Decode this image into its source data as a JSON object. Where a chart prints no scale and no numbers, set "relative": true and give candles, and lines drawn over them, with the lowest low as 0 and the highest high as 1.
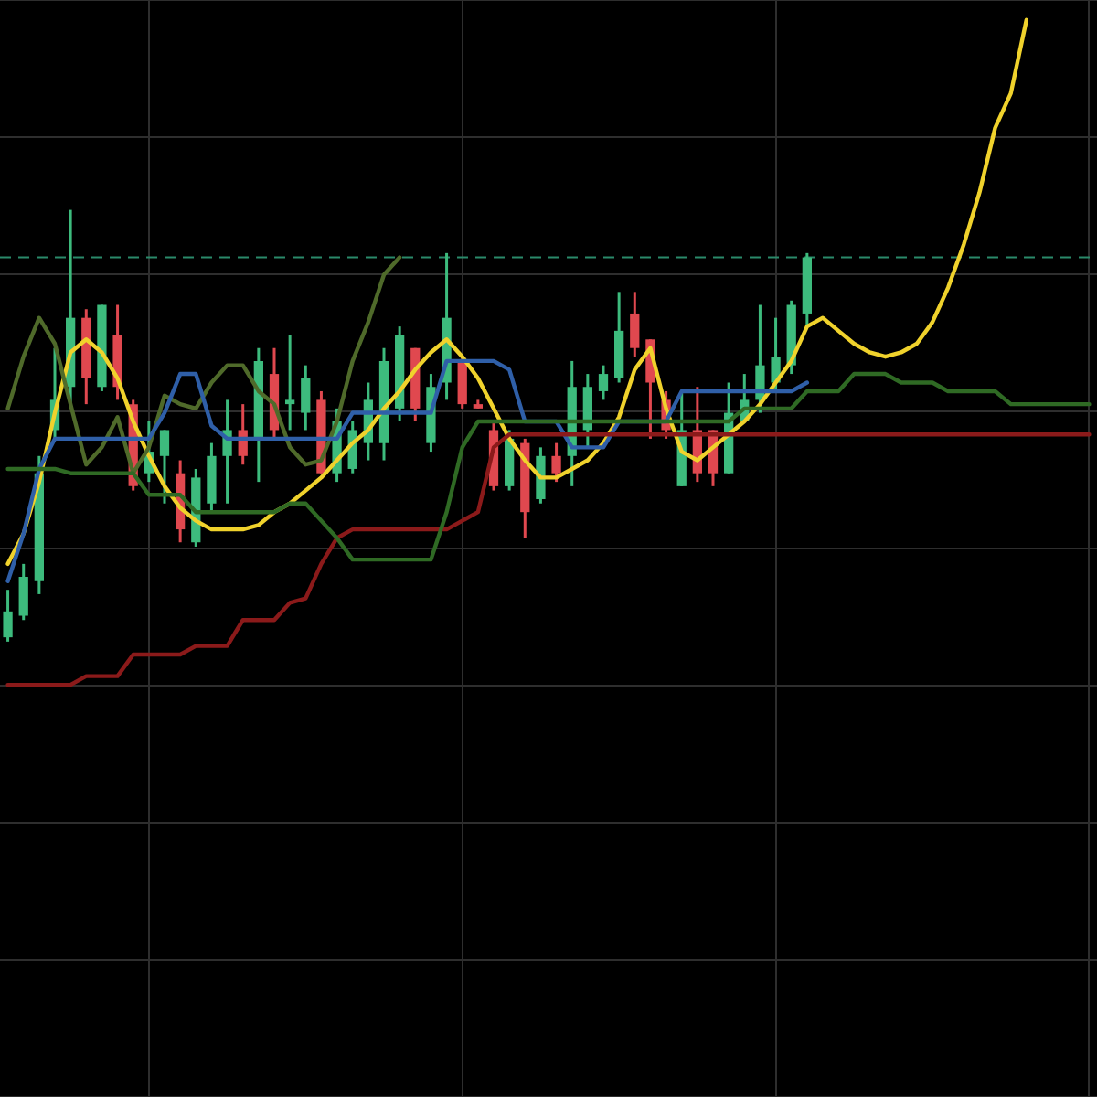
{
  "chart_data": {
    "type": "candlestick",
    "relative": true,
    "grid": true,
    "legend": false,
    "marker": "none",
    "line_style": "solid",
    "categories": [
      null,
      null,
      null,
      null,
      null,
      null,
      null,
      null,
      null,
      null,
      null,
      null,
      null,
      null,
      null,
      null,
      null,
      null,
      null,
      null,
      null,
      null,
      null,
      null,
      null,
      null,
      null,
      null,
      null,
      null,
      null,
      null,
      null,
      null,
      null,
      null,
      null,
      null,
      null,
      null,
      null,
      null,
      null,
      null,
      null,
      null,
      null,
      null,
      null,
      null,
      null,
      null,
      null,
      null,
      null,
      null,
      null,
      null,
      null,
      null,
      null,
      null,
      null,
      null,
      null,
      null,
      null,
      null,
      null,
      null
    ],
    "ohlc": [
      [
        0.01,
        0.12,
        0,
        0.07
      ],
      [
        0.06,
        0.18,
        0.05,
        0.15
      ],
      [
        0.14,
        0.43,
        0.11,
        0.39
      ],
      [
        0.49,
        0.68,
        0.47,
        0.56
      ],
      [
        0.59,
        1,
        0.54,
        0.75
      ],
      [
        0.75,
        0.77,
        0.55,
        0.61
      ],
      [
        0.59,
        0.78,
        0.58,
        0.78
      ],
      [
        0.71,
        0.78,
        0.56,
        0.59
      ],
      [
        0.55,
        0.56,
        0.35,
        0.36
      ],
      [
        0.39,
        0.51,
        0.37,
        0.44
      ],
      [
        0.43,
        0.49,
        0.32,
        0.49
      ],
      [
        0.39,
        0.42,
        0.23,
        0.26
      ],
      [
        0.23,
        0.4,
        0.22,
        0.38
      ],
      [
        0.32,
        0.46,
        0.3,
        0.43
      ],
      [
        0.43,
        0.56,
        0.32,
        0.49
      ],
      [
        0.49,
        0.55,
        0.41,
        0.43
      ],
      [
        0.47,
        0.68,
        0.37,
        0.65
      ],
      [
        0.62,
        0.68,
        0.47,
        0.49
      ],
      [
        0.55,
        0.71,
        0.49,
        0.56
      ],
      [
        0.53,
        0.64,
        0.49,
        0.61
      ],
      [
        0.56,
        0.58,
        0.39,
        0.39
      ],
      [
        0.39,
        0.54,
        0.37,
        0.51
      ],
      [
        0.4,
        0.51,
        0.39,
        0.49
      ],
      [
        0.46,
        0.6,
        0.42,
        0.56
      ],
      [
        0.46,
        0.68,
        0.42,
        0.65
      ],
      [
        0.54,
        0.73,
        0.51,
        0.71
      ],
      [
        0.68,
        0.68,
        0.51,
        0.54
      ],
      [
        0.46,
        0.62,
        0.44,
        0.59
      ],
      [
        0.6,
        0.9,
        0.56,
        0.75
      ],
      [
        0.65,
        0.66,
        0.54,
        0.55
      ],
      [
        0.55,
        0.56,
        0.54,
        0.54
      ],
      [
        0.49,
        0.51,
        0.35,
        0.36
      ],
      [
        0.36,
        0.49,
        0.35,
        0.47
      ],
      [
        0.46,
        0.47,
        0.24,
        0.3
      ],
      [
        0.33,
        0.45,
        0.32,
        0.43
      ],
      [
        0.43,
        0.46,
        0.37,
        0.39
      ],
      [
        0.43,
        0.65,
        0.36,
        0.59
      ],
      [
        0.49,
        0.62,
        0.45,
        0.59
      ],
      [
        0.58,
        0.64,
        0.56,
        0.62
      ],
      [
        0.61,
        0.81,
        0.6,
        0.72
      ],
      [
        0.76,
        0.81,
        0.66,
        0.68
      ],
      [
        0.7,
        0.7,
        0.47,
        0.6
      ],
      [
        0.56,
        0.58,
        0.47,
        0.49
      ],
      [
        0.36,
        0.58,
        0.36,
        0.49
      ],
      [
        0.49,
        0.59,
        0.37,
        0.39
      ],
      [
        0.49,
        0.49,
        0.36,
        0.39
      ],
      [
        0.39,
        0.6,
        0.39,
        0.53
      ],
      [
        0.51,
        0.62,
        0.51,
        0.56
      ],
      [
        0.56,
        0.78,
        0.53,
        0.64
      ],
      [
        0.6,
        0.75,
        0.58,
        0.66
      ],
      [
        0.64,
        0.79,
        0.62,
        0.78
      ],
      [
        0.76,
        0.9,
        0.73,
        0.89
      ],
      null,
      null,
      null,
      null,
      null,
      null,
      null,
      null,
      null,
      null,
      null,
      null,
      null,
      null,
      null,
      null,
      null,
      null
    ],
    "colors": [
      "#3dbb7d",
      "#3dbb7d",
      "#3dbb7d",
      "#3dbb7d",
      "#3dbb7d",
      "#e0484f",
      "#3dbb7d",
      "#e0484f",
      "#e0484f",
      "#3dbb7d",
      "#3dbb7d",
      "#e0484f",
      "#3dbb7d",
      "#3dbb7d",
      "#3dbb7d",
      "#e0484f",
      "#3dbb7d",
      "#e0484f",
      "#3dbb7d",
      "#3dbb7d",
      "#e0484f",
      "#3dbb7d",
      "#3dbb7d",
      "#3dbb7d",
      "#3dbb7d",
      "#3dbb7d",
      "#e0484f",
      "#3dbb7d",
      "#3dbb7d",
      "#e0484f",
      "#e0484f",
      "#e0484f",
      "#3dbb7d",
      "#e0484f",
      "#3dbb7d",
      "#e0484f",
      "#3dbb7d",
      "#3dbb7d",
      "#3dbb7d",
      "#3dbb7d",
      "#e0484f",
      "#e0484f",
      "#e0484f",
      "#3dbb7d",
      "#e0484f",
      "#e0484f",
      "#3dbb7d",
      "#3dbb7d",
      "#3dbb7d",
      "#3dbb7d",
      "#3dbb7d",
      "#3dbb7d",
      null,
      null,
      null,
      null,
      null,
      null,
      null,
      null,
      null,
      null,
      null,
      null,
      null,
      null,
      null,
      null,
      null,
      null
    ],
    "ref_lines": [
      {
        "axis": "y",
        "value": 0.89,
        "color": "#2a8a6a",
        "line_style": "dashed"
      }
    ],
    "series": [
      {
        "type": "line",
        "color": "#2f6a24",
        "values": [
          0.4,
          0.4,
          0.4,
          0.4,
          0.39,
          0.39,
          0.39,
          0.39,
          0.39,
          0.34,
          0.34,
          0.34,
          0.3,
          0.3,
          0.3,
          0.3,
          0.3,
          0.3,
          0.32,
          0.32,
          0.28,
          0.24,
          0.19,
          0.19,
          0.19,
          0.19,
          0.19,
          0.19,
          0.3,
          0.45,
          0.51,
          0.51,
          0.51,
          0.51,
          0.51,
          0.51,
          0.51,
          0.51,
          0.51,
          0.51,
          0.51,
          0.51,
          0.51,
          0.51,
          0.51,
          0.51,
          0.51,
          0.54,
          0.54,
          0.54,
          0.54,
          0.58,
          0.58,
          0.58,
          0.62,
          0.62,
          0.62,
          0.6,
          0.6,
          0.6,
          0.58,
          0.58,
          0.58,
          0.58,
          0.55,
          0.55,
          0.55,
          0.55,
          0.55,
          0.55
        ]
      },
      {
        "type": "line",
        "color": "#8b1a1a",
        "values": [
          -0.1,
          -0.1,
          -0.1,
          -0.1,
          -0.1,
          -0.08,
          -0.08,
          -0.08,
          -0.03,
          -0.03,
          -0.03,
          -0.03,
          -0.01,
          -0.01,
          -0.01,
          0.05,
          0.05,
          0.05,
          0.09,
          0.1,
          0.18,
          0.24,
          0.26,
          0.26,
          0.26,
          0.26,
          0.26,
          0.26,
          0.26,
          0.28,
          0.3,
          0.45,
          0.48,
          0.48,
          0.48,
          0.48,
          0.48,
          0.48,
          0.48,
          0.48,
          0.48,
          0.48,
          0.48,
          0.48,
          0.48,
          0.48,
          0.48,
          0.48,
          0.48,
          0.48,
          0.48,
          0.48,
          0.48,
          0.48,
          0.48,
          0.48,
          0.48,
          0.48,
          0.48,
          0.48,
          0.48,
          0.48,
          0.48,
          0.48,
          0.48,
          0.48,
          0.48,
          0.48,
          0.48,
          0.48
        ]
      },
      {
        "type": "line",
        "color": "#2f5fa8",
        "values": [
          0.14,
          0.25,
          0.4,
          0.47,
          0.47,
          0.47,
          0.47,
          0.47,
          0.47,
          0.47,
          0.53,
          0.62,
          0.62,
          0.5,
          0.47,
          0.47,
          0.47,
          0.47,
          0.47,
          0.47,
          0.47,
          0.47,
          0.53,
          0.53,
          0.53,
          0.53,
          0.53,
          0.53,
          0.65,
          0.65,
          0.65,
          0.65,
          0.63,
          0.51,
          0.51,
          0.51,
          0.45,
          0.45,
          0.45,
          0.51,
          0.51,
          0.51,
          0.51,
          0.58,
          0.58,
          0.58,
          0.58,
          0.58,
          0.58,
          0.58,
          0.58,
          0.6,
          null,
          null,
          null,
          null,
          null,
          null,
          null,
          null,
          null,
          null,
          null,
          null,
          null,
          null,
          null,
          null,
          null,
          null
        ]
      },
      {
        "type": "line",
        "color": "#4f6a2a",
        "values": [
          0.54,
          0.66,
          0.75,
          0.69,
          0.55,
          0.41,
          0.45,
          0.52,
          0.39,
          0.45,
          0.57,
          0.55,
          0.54,
          0.6,
          0.64,
          0.64,
          0.58,
          0.55,
          0.45,
          0.41,
          0.42,
          0.51,
          0.65,
          0.74,
          0.85,
          0.89,
          null,
          null,
          null,
          null,
          null,
          null,
          null,
          null,
          null,
          null,
          null,
          null,
          null,
          null,
          null,
          null,
          null,
          null,
          null,
          null,
          null,
          null,
          null,
          null,
          null,
          null,
          null,
          null,
          null,
          null,
          null,
          null,
          null,
          null,
          null,
          null,
          null,
          null,
          null,
          null,
          null,
          null,
          null,
          null
        ]
      },
      {
        "type": "line",
        "color": "#f0d22c",
        "values": [
          0.18,
          0.25,
          0.37,
          0.53,
          0.67,
          0.7,
          0.67,
          0.61,
          0.51,
          0.43,
          0.36,
          0.31,
          0.28,
          0.26,
          0.26,
          0.26,
          0.27,
          0.3,
          0.32,
          0.35,
          0.38,
          0.42,
          0.46,
          0.49,
          0.54,
          0.58,
          0.63,
          0.67,
          0.7,
          0.66,
          0.61,
          0.54,
          0.47,
          0.42,
          0.38,
          0.38,
          0.4,
          0.42,
          0.46,
          0.52,
          0.63,
          0.68,
          0.54,
          0.44,
          0.42,
          0.45,
          0.48,
          0.51,
          0.55,
          0.6,
          0.65,
          0.73,
          0.75,
          0.72,
          0.69,
          0.67,
          0.66,
          0.67,
          0.69,
          0.74,
          0.82,
          0.92,
          1.04,
          1.19,
          1.27,
          1.44,
          null,
          null,
          null,
          null
        ]
      }
    ]
  }
}
